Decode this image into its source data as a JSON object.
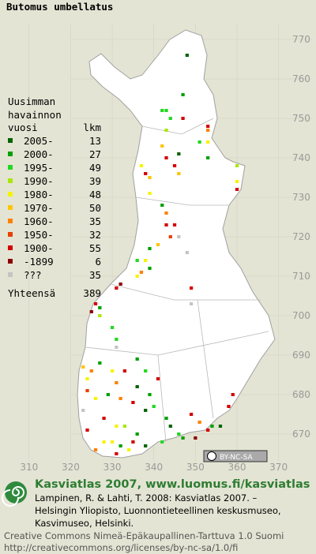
{
  "title": "Butomus umbellatus",
  "map": {
    "xlim": [
      303,
      379
    ],
    "ylim": [
      660,
      780
    ],
    "xticks": [
      310,
      320,
      330,
      340,
      350,
      360,
      370
    ],
    "yticks": [
      670,
      680,
      690,
      700,
      710,
      720,
      730,
      740,
      750,
      760,
      770
    ],
    "squares": [
      {
        "x": 348,
        "y": 766,
        "period": "2005-"
      },
      {
        "x": 347,
        "y": 756,
        "period": "2000-"
      },
      {
        "x": 342,
        "y": 752,
        "period": "1995-"
      },
      {
        "x": 343,
        "y": 752,
        "period": "1995-"
      },
      {
        "x": 344,
        "y": 750,
        "period": "1995-"
      },
      {
        "x": 347,
        "y": 750,
        "period": "1900-"
      },
      {
        "x": 353,
        "y": 748,
        "period": "1900-"
      },
      {
        "x": 353,
        "y": 747,
        "period": "1960-"
      },
      {
        "x": 353,
        "y": 744,
        "period": "1980-"
      },
      {
        "x": 343,
        "y": 747,
        "period": "1990-"
      },
      {
        "x": 351,
        "y": 744,
        "period": "1995-"
      },
      {
        "x": 342,
        "y": 743,
        "period": "1970-"
      },
      {
        "x": 343,
        "y": 740,
        "period": "1900-"
      },
      {
        "x": 346,
        "y": 741,
        "period": "2005-"
      },
      {
        "x": 353,
        "y": 740,
        "period": "2000-"
      },
      {
        "x": 337,
        "y": 738,
        "period": "1980-"
      },
      {
        "x": 338,
        "y": 736,
        "period": "1900-"
      },
      {
        "x": 345,
        "y": 738,
        "period": "1900-"
      },
      {
        "x": 346,
        "y": 736,
        "period": "1970-"
      },
      {
        "x": 339,
        "y": 735,
        "period": "1970-"
      },
      {
        "x": 360,
        "y": 738,
        "period": "1990-"
      },
      {
        "x": 360,
        "y": 732,
        "period": "1900-"
      },
      {
        "x": 360,
        "y": 734,
        "period": "1980-"
      },
      {
        "x": 339,
        "y": 731,
        "period": "1980-"
      },
      {
        "x": 342,
        "y": 728,
        "period": "2000-"
      },
      {
        "x": 343,
        "y": 726,
        "period": "1960-"
      },
      {
        "x": 343,
        "y": 723,
        "period": "1900-"
      },
      {
        "x": 344,
        "y": 720,
        "period": "1950-"
      },
      {
        "x": 346,
        "y": 720,
        "period": "???"
      },
      {
        "x": 341,
        "y": 718,
        "period": "1970-"
      },
      {
        "x": 345,
        "y": 723,
        "period": "1900-"
      },
      {
        "x": 339,
        "y": 717,
        "period": "2000-"
      },
      {
        "x": 338,
        "y": 714,
        "period": "1980-"
      },
      {
        "x": 336,
        "y": 714,
        "period": "1995-"
      },
      {
        "x": 337,
        "y": 711,
        "period": "1960-"
      },
      {
        "x": 336,
        "y": 710,
        "period": "1980-"
      },
      {
        "x": 348,
        "y": 716,
        "period": "???"
      },
      {
        "x": 339,
        "y": 712,
        "period": "2000-"
      },
      {
        "x": 349,
        "y": 707,
        "period": "1900-"
      },
      {
        "x": 349,
        "y": 703,
        "period": "???"
      },
      {
        "x": 331,
        "y": 707,
        "period": "1900-"
      },
      {
        "x": 332,
        "y": 708,
        "period": "-1899"
      },
      {
        "x": 326,
        "y": 703,
        "period": "1900-"
      },
      {
        "x": 327,
        "y": 702,
        "period": "2000-"
      },
      {
        "x": 327,
        "y": 700,
        "period": "1990-"
      },
      {
        "x": 325,
        "y": 701,
        "period": "-1899"
      },
      {
        "x": 330,
        "y": 697,
        "period": "1995-"
      },
      {
        "x": 331,
        "y": 694,
        "period": "1995-"
      },
      {
        "x": 331,
        "y": 692,
        "period": "???"
      },
      {
        "x": 323,
        "y": 687,
        "period": "1970-"
      },
      {
        "x": 324,
        "y": 684,
        "period": "1980-"
      },
      {
        "x": 325,
        "y": 686,
        "period": "1960-"
      },
      {
        "x": 327,
        "y": 688,
        "period": "2000-"
      },
      {
        "x": 330,
        "y": 686,
        "period": "1980-"
      },
      {
        "x": 331,
        "y": 683,
        "period": "1960-"
      },
      {
        "x": 333,
        "y": 686,
        "period": "1900-"
      },
      {
        "x": 336,
        "y": 689,
        "period": "2000-"
      },
      {
        "x": 338,
        "y": 686,
        "period": "1995-"
      },
      {
        "x": 336,
        "y": 682,
        "period": "2005-"
      },
      {
        "x": 339,
        "y": 680,
        "period": "2000-"
      },
      {
        "x": 324,
        "y": 681,
        "period": "1950-"
      },
      {
        "x": 326,
        "y": 679,
        "period": "1980-"
      },
      {
        "x": 329,
        "y": 680,
        "period": "2000-"
      },
      {
        "x": 332,
        "y": 679,
        "period": "1960-"
      },
      {
        "x": 335,
        "y": 678,
        "period": "1900-"
      },
      {
        "x": 341,
        "y": 684,
        "period": "1900-"
      },
      {
        "x": 340,
        "y": 677,
        "period": "1995-"
      },
      {
        "x": 323,
        "y": 676,
        "period": "???"
      },
      {
        "x": 328,
        "y": 674,
        "period": "1900-"
      },
      {
        "x": 331,
        "y": 672,
        "period": "1980-"
      },
      {
        "x": 333,
        "y": 672,
        "period": "1990-"
      },
      {
        "x": 336,
        "y": 670,
        "period": "2000-"
      },
      {
        "x": 338,
        "y": 676,
        "period": "2005-"
      },
      {
        "x": 343,
        "y": 674,
        "period": "2000-"
      },
      {
        "x": 344,
        "y": 672,
        "period": "2005-"
      },
      {
        "x": 346,
        "y": 670,
        "period": "1995-"
      },
      {
        "x": 349,
        "y": 675,
        "period": "1900-"
      },
      {
        "x": 351,
        "y": 673,
        "period": "1960-"
      },
      {
        "x": 353,
        "y": 671,
        "period": "1900-"
      },
      {
        "x": 354,
        "y": 672,
        "period": "2000-"
      },
      {
        "x": 356,
        "y": 672,
        "period": "2005-"
      },
      {
        "x": 358,
        "y": 677,
        "period": "1900-"
      },
      {
        "x": 359,
        "y": 680,
        "period": "1900-"
      },
      {
        "x": 330,
        "y": 668,
        "period": "1980-"
      },
      {
        "x": 332,
        "y": 667,
        "period": "2000-"
      },
      {
        "x": 335,
        "y": 668,
        "period": "1900-"
      },
      {
        "x": 338,
        "y": 667,
        "period": "2005-"
      },
      {
        "x": 326,
        "y": 666,
        "period": "1960-"
      },
      {
        "x": 331,
        "y": 665,
        "period": "1900-"
      },
      {
        "x": 342,
        "y": 668,
        "period": "1995-"
      },
      {
        "x": 347,
        "y": 669,
        "period": "2000-"
      },
      {
        "x": 350,
        "y": 669,
        "period": "-1899"
      },
      {
        "x": 324,
        "y": 671,
        "period": "1900-"
      },
      {
        "x": 334,
        "y": 666,
        "period": "1980-"
      },
      {
        "x": 328,
        "y": 668,
        "period": "1980-"
      }
    ]
  },
  "legend": {
    "heading": [
      "Uusimman",
      "havainnon",
      "vuosi"
    ],
    "count_heading": "lkm",
    "items": [
      {
        "label": "2005-",
        "color": "#006400",
        "count": 13
      },
      {
        "label": "2000-",
        "color": "#00a000",
        "count": 27
      },
      {
        "label": "1995-",
        "color": "#22d822",
        "count": 49
      },
      {
        "label": "1990-",
        "color": "#a8e800",
        "count": 39
      },
      {
        "label": "1980-",
        "color": "#f4f400",
        "count": 48
      },
      {
        "label": "1970-",
        "color": "#ffc400",
        "count": 50
      },
      {
        "label": "1960-",
        "color": "#ff8000",
        "count": 35
      },
      {
        "label": "1950-",
        "color": "#e84000",
        "count": 32
      },
      {
        "label": "1900-",
        "color": "#d40000",
        "count": 55
      },
      {
        "label": "-1899",
        "color": "#8c0000",
        "count": 6
      },
      {
        "label": "???",
        "color": "#c4c4c4",
        "count": 35
      }
    ],
    "total_label": "Yhteensä",
    "total": 389
  },
  "badge": "BY-NC-SA",
  "footer": {
    "heading": "Kasviatlas 2007, www.luomus.fi/kasviatlas",
    "citation": [
      "Lampinen, R. & Lahti, T. 2008: Kasviatlas 2007. –",
      "Helsingin Yliopisto, Luonnontieteellinen keskusmuseo,",
      "Kasvimuseo, Helsinki."
    ],
    "license": [
      "Creative Commons Nimeä-Epäkaupallinen-Tarttuva 1.0 Suomi",
      "http://creativecommons.org/licenses/by-nc-sa/1.0/fi"
    ]
  }
}
